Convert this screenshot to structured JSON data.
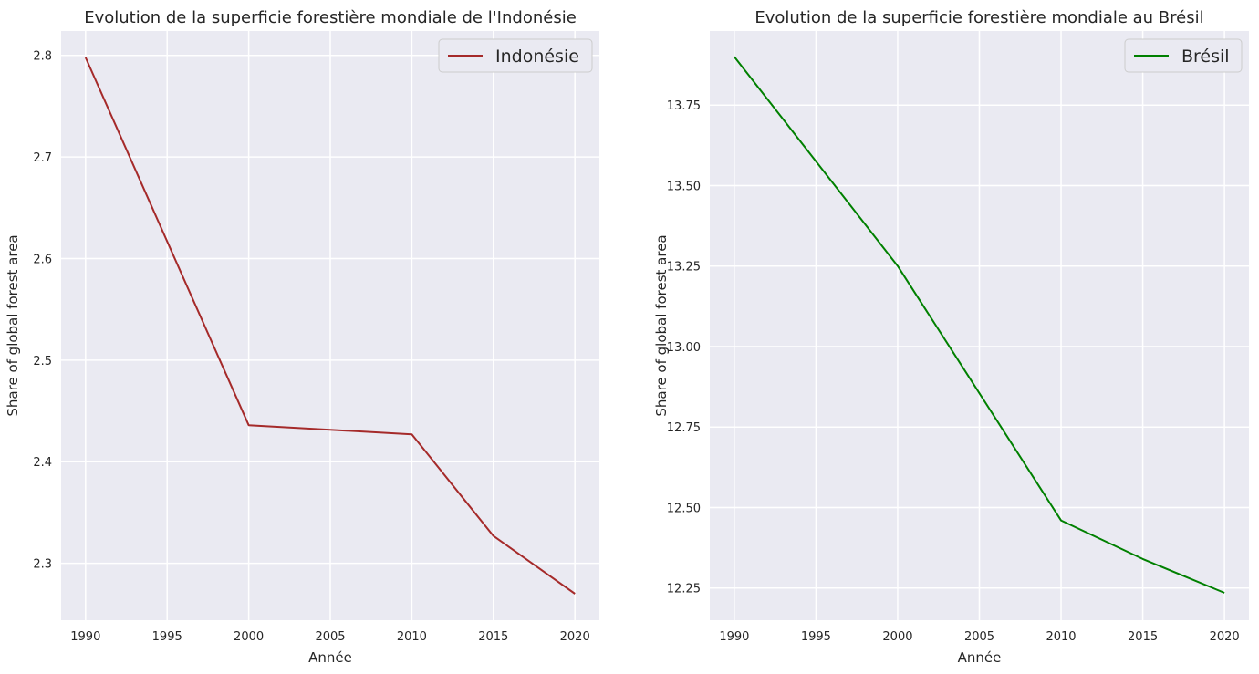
{
  "chart_data": [
    {
      "type": "line",
      "title": "Evolution de la superficie forestière mondiale de l'Indonésie",
      "xlabel": "Année",
      "ylabel": "Share of global forest area",
      "x": [
        1990,
        2000,
        2010,
        2015,
        2020
      ],
      "series": [
        {
          "name": "Indonésie",
          "color": "#A52A2A",
          "values": [
            2.798,
            2.436,
            2.427,
            2.327,
            2.27
          ]
        }
      ],
      "xlim": [
        1988.5,
        2021.5
      ],
      "ylim": [
        2.244,
        2.824
      ],
      "xticks": [
        1990,
        1995,
        2000,
        2005,
        2010,
        2015,
        2020
      ],
      "yticks": [
        2.3,
        2.4,
        2.5,
        2.6,
        2.7,
        2.8
      ],
      "ytick_labels": [
        "2.3",
        "2.4",
        "2.5",
        "2.6",
        "2.7",
        "2.8"
      ],
      "grid": true,
      "legend": "top-right"
    },
    {
      "type": "line",
      "title": "Evolution de la superficie forestière mondiale au Brésil",
      "xlabel": "Année",
      "ylabel": "Share of global forest area",
      "x": [
        1990,
        2000,
        2010,
        2015,
        2020
      ],
      "series": [
        {
          "name": "Brésil",
          "color": "#008000",
          "values": [
            13.9,
            13.25,
            12.46,
            12.34,
            12.235
          ]
        }
      ],
      "xlim": [
        1988.5,
        2021.5
      ],
      "ylim": [
        12.15,
        13.98
      ],
      "xticks": [
        1990,
        1995,
        2000,
        2005,
        2010,
        2015,
        2020
      ],
      "yticks": [
        12.25,
        12.5,
        12.75,
        13.0,
        13.25,
        13.5,
        13.75
      ],
      "ytick_labels": [
        "12.25",
        "12.50",
        "12.75",
        "13.00",
        "13.25",
        "13.50",
        "13.75"
      ],
      "grid": true,
      "legend": "top-right"
    }
  ]
}
